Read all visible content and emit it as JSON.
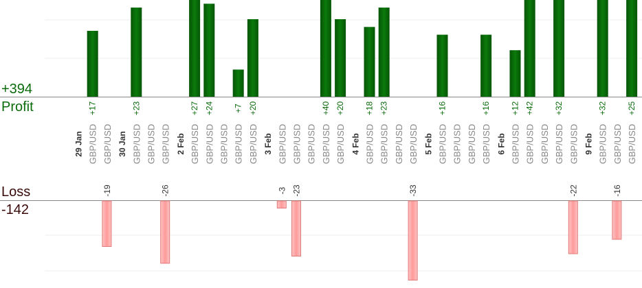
{
  "summary": {
    "profit_total": "+394",
    "profit_label": "Profit",
    "loss_label": "Loss",
    "loss_total": "-142"
  },
  "colors": {
    "profit": "#0a6b0a",
    "loss": "#ffb3b3",
    "loss_border": "#e07a7a",
    "date_text": "#333333",
    "pair_text": "#888888",
    "grid": "#eeeeee",
    "axis": "#888888"
  },
  "chart_data": {
    "type": "bar",
    "instrument_label": "GBP/USD",
    "dates": [
      {
        "label": "29 Jan",
        "slot": 0
      },
      {
        "label": "30 Jan",
        "slot": 3
      },
      {
        "label": "2 Feb",
        "slot": 7
      },
      {
        "label": "3 Feb",
        "slot": 13
      },
      {
        "label": "4 Feb",
        "slot": 19
      },
      {
        "label": "5 Feb",
        "slot": 24
      },
      {
        "label": "6 Feb",
        "slot": 29
      },
      {
        "label": "9 Feb",
        "slot": 35
      }
    ],
    "trades": [
      {
        "slot": 1,
        "value": 17
      },
      {
        "slot": 2,
        "value": -19
      },
      {
        "slot": 4,
        "value": 23
      },
      {
        "slot": 5,
        "value": null
      },
      {
        "slot": 6,
        "value": -26
      },
      {
        "slot": 8,
        "value": 27
      },
      {
        "slot": 9,
        "value": 24
      },
      {
        "slot": 10,
        "value": null
      },
      {
        "slot": 11,
        "value": 7
      },
      {
        "slot": 12,
        "value": 20
      },
      {
        "slot": 14,
        "value": -3
      },
      {
        "slot": 15,
        "value": -23
      },
      {
        "slot": 16,
        "value": null
      },
      {
        "slot": 17,
        "value": 40
      },
      {
        "slot": 18,
        "value": 20
      },
      {
        "slot": 20,
        "value": 18
      },
      {
        "slot": 21,
        "value": 23
      },
      {
        "slot": 22,
        "value": null
      },
      {
        "slot": 23,
        "value": -33
      },
      {
        "slot": 25,
        "value": 16
      },
      {
        "slot": 26,
        "value": null
      },
      {
        "slot": 27,
        "value": null
      },
      {
        "slot": 28,
        "value": 16
      },
      {
        "slot": 30,
        "value": 12
      },
      {
        "slot": 31,
        "value": 42
      },
      {
        "slot": 32,
        "value": null
      },
      {
        "slot": 33,
        "value": 32
      },
      {
        "slot": 34,
        "value": -22
      },
      {
        "slot": 36,
        "value": 32
      },
      {
        "slot": 37,
        "value": -16
      },
      {
        "slot": 38,
        "value": 25
      }
    ]
  }
}
